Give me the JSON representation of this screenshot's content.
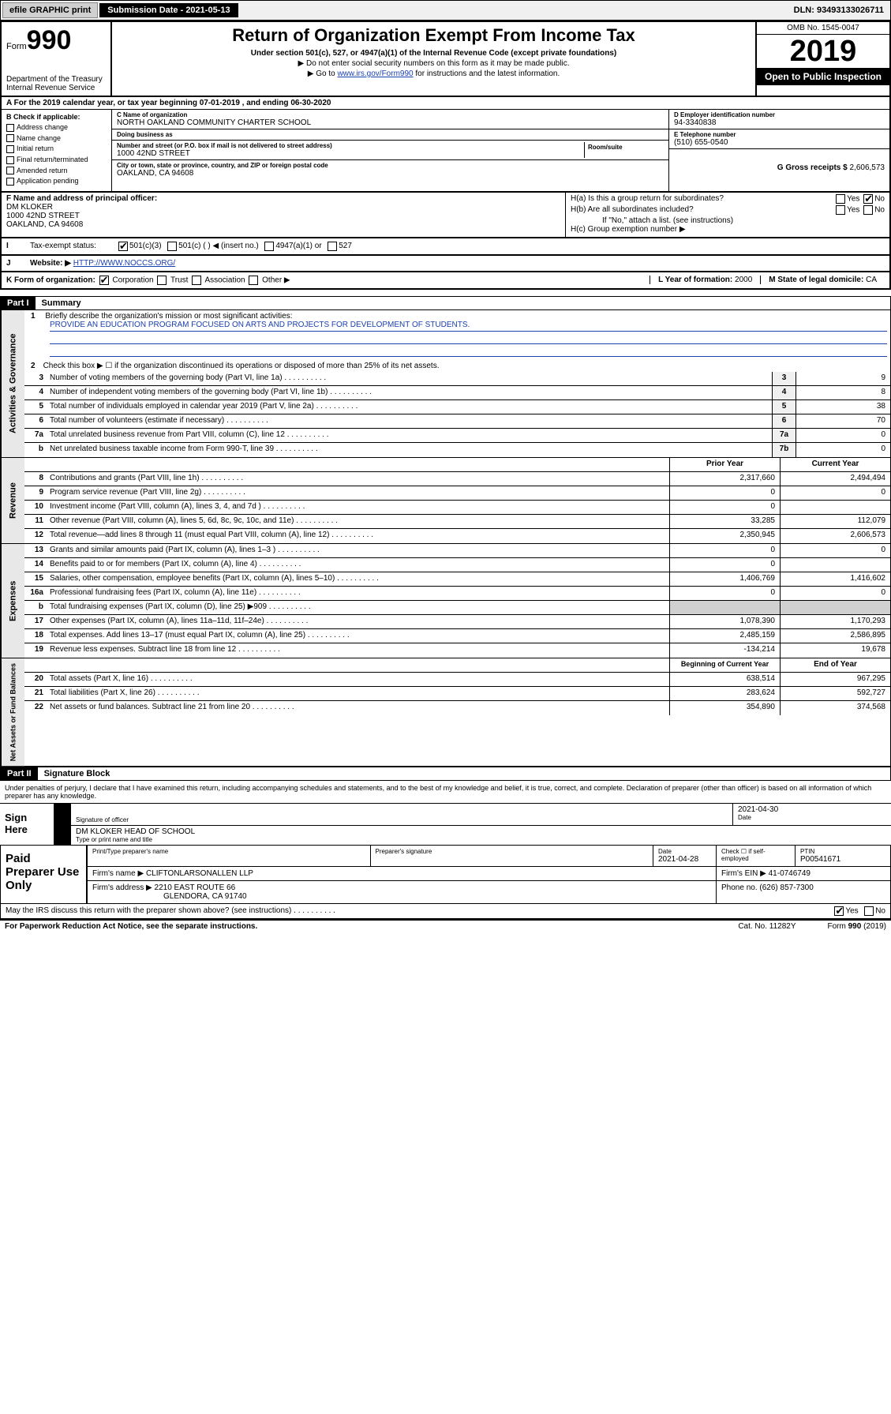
{
  "topbar": {
    "efile": "efile GRAPHIC print",
    "submission": "Submission Date - 2021-05-13",
    "dln": "DLN: 93493133026711"
  },
  "header": {
    "form_prefix": "Form",
    "form_no": "990",
    "title": "Return of Organization Exempt From Income Tax",
    "subtitle": "Under section 501(c), 527, or 4947(a)(1) of the Internal Revenue Code (except private foundations)",
    "instr1": "▶ Do not enter social security numbers on this form as it may be made public.",
    "instr2_pre": "▶ Go to ",
    "instr2_link": "www.irs.gov/Form990",
    "instr2_post": " for instructions and the latest information.",
    "dept": "Department of the Treasury\nInternal Revenue Service",
    "omb": "OMB No. 1545-0047",
    "year": "2019",
    "open": "Open to Public Inspection"
  },
  "periodA": {
    "text": "A For the 2019 calendar year, or tax year beginning 07-01-2019     , and ending 06-30-2020"
  },
  "boxB": {
    "title": "B Check if applicable:",
    "items": [
      "Address change",
      "Name change",
      "Initial return",
      "Final return/terminated",
      "Amended return",
      "Application pending"
    ]
  },
  "boxC": {
    "name_lbl": "C Name of organization",
    "name": "NORTH OAKLAND COMMUNITY CHARTER SCHOOL",
    "dba_lbl": "Doing business as",
    "dba": "",
    "addr_lbl": "Number and street (or P.O. box if mail is not delivered to street address)",
    "room_lbl": "Room/suite",
    "addr": "1000 42ND STREET",
    "city_lbl": "City or town, state or province, country, and ZIP or foreign postal code",
    "city": "OAKLAND, CA  94608"
  },
  "boxD": {
    "lbl": "D Employer identification number",
    "val": "94-3340838"
  },
  "boxE": {
    "lbl": "E Telephone number",
    "val": "(510) 655-0540"
  },
  "boxG": {
    "lbl": "G Gross receipts $",
    "val": "2,606,573"
  },
  "boxF": {
    "lbl": "F  Name and address of principal officer:",
    "name": "DM KLOKER",
    "addr1": "1000 42ND STREET",
    "addr2": "OAKLAND, CA  94608"
  },
  "boxH": {
    "a": "H(a)  Is this a group return for subordinates?",
    "b": "H(b)  Are all subordinates included?",
    "bnote": "If \"No,\" attach a list. (see instructions)",
    "c": "H(c)  Group exemption number ▶"
  },
  "rowI": {
    "lbl": "Tax-exempt status:",
    "opts": [
      "501(c)(3)",
      "501(c) (  ) ◀ (insert no.)",
      "4947(a)(1) or",
      "527"
    ]
  },
  "rowJ": {
    "lbl": "Website: ▶",
    "val": "HTTP://WWW.NOCCS.ORG/"
  },
  "rowK": {
    "lbl": "K Form of organization:",
    "opts": [
      "Corporation",
      "Trust",
      "Association",
      "Other ▶"
    ],
    "L_lbl": "L Year of formation:",
    "L_val": "2000",
    "M_lbl": "M State of legal domicile:",
    "M_val": "CA"
  },
  "partI": {
    "hdr": "Part I",
    "title": "Summary"
  },
  "gov": {
    "side": "Activities & Governance",
    "l1_lbl": "Briefly describe the organization's mission or most significant activities:",
    "l1_val": "PROVIDE AN EDUCATION PROGRAM FOCUSED ON ARTS AND PROJECTS FOR DEVELOPMENT OF STUDENTS.",
    "l2": "Check this box ▶ ☐  if the organization discontinued its operations or disposed of more than 25% of its net assets.",
    "rows": [
      {
        "n": "3",
        "d": "Number of voting members of the governing body (Part VI, line 1a)",
        "b": "3",
        "v": "9"
      },
      {
        "n": "4",
        "d": "Number of independent voting members of the governing body (Part VI, line 1b)",
        "b": "4",
        "v": "8"
      },
      {
        "n": "5",
        "d": "Total number of individuals employed in calendar year 2019 (Part V, line 2a)",
        "b": "5",
        "v": "38"
      },
      {
        "n": "6",
        "d": "Total number of volunteers (estimate if necessary)",
        "b": "6",
        "v": "70"
      },
      {
        "n": "7a",
        "d": "Total unrelated business revenue from Part VIII, column (C), line 12",
        "b": "7a",
        "v": "0"
      },
      {
        "n": "b",
        "d": "Net unrelated business taxable income from Form 990-T, line 39",
        "b": "7b",
        "v": "0"
      }
    ]
  },
  "rev": {
    "side": "Revenue",
    "hdr_prior": "Prior Year",
    "hdr_curr": "Current Year",
    "rows": [
      {
        "n": "8",
        "d": "Contributions and grants (Part VIII, line 1h)",
        "p": "2,317,660",
        "c": "2,494,494"
      },
      {
        "n": "9",
        "d": "Program service revenue (Part VIII, line 2g)",
        "p": "0",
        "c": "0"
      },
      {
        "n": "10",
        "d": "Investment income (Part VIII, column (A), lines 3, 4, and 7d )",
        "p": "0",
        "c": ""
      },
      {
        "n": "11",
        "d": "Other revenue (Part VIII, column (A), lines 5, 6d, 8c, 9c, 10c, and 11e)",
        "p": "33,285",
        "c": "112,079"
      },
      {
        "n": "12",
        "d": "Total revenue—add lines 8 through 11 (must equal Part VIII, column (A), line 12)",
        "p": "2,350,945",
        "c": "2,606,573"
      }
    ]
  },
  "exp": {
    "side": "Expenses",
    "rows": [
      {
        "n": "13",
        "d": "Grants and similar amounts paid (Part IX, column (A), lines 1–3 )",
        "p": "0",
        "c": "0"
      },
      {
        "n": "14",
        "d": "Benefits paid to or for members (Part IX, column (A), line 4)",
        "p": "0",
        "c": ""
      },
      {
        "n": "15",
        "d": "Salaries, other compensation, employee benefits (Part IX, column (A), lines 5–10)",
        "p": "1,406,769",
        "c": "1,416,602"
      },
      {
        "n": "16a",
        "d": "Professional fundraising fees (Part IX, column (A), line 11e)",
        "p": "0",
        "c": "0"
      },
      {
        "n": "b",
        "d": "Total fundraising expenses (Part IX, column (D), line 25) ▶909",
        "p": "",
        "c": "",
        "shade": true
      },
      {
        "n": "17",
        "d": "Other expenses (Part IX, column (A), lines 11a–11d, 11f–24e)",
        "p": "1,078,390",
        "c": "1,170,293"
      },
      {
        "n": "18",
        "d": "Total expenses. Add lines 13–17 (must equal Part IX, column (A), line 25)",
        "p": "2,485,159",
        "c": "2,586,895"
      },
      {
        "n": "19",
        "d": "Revenue less expenses. Subtract line 18 from line 12",
        "p": "-134,214",
        "c": "19,678"
      }
    ]
  },
  "net": {
    "side": "Net Assets or Fund Balances",
    "hdr_prior": "Beginning of Current Year",
    "hdr_curr": "End of Year",
    "rows": [
      {
        "n": "20",
        "d": "Total assets (Part X, line 16)",
        "p": "638,514",
        "c": "967,295"
      },
      {
        "n": "21",
        "d": "Total liabilities (Part X, line 26)",
        "p": "283,624",
        "c": "592,727"
      },
      {
        "n": "22",
        "d": "Net assets or fund balances. Subtract line 21 from line 20",
        "p": "354,890",
        "c": "374,568"
      }
    ]
  },
  "partII": {
    "hdr": "Part II",
    "title": "Signature Block"
  },
  "sig": {
    "perjury": "Under penalties of perjury, I declare that I have examined this return, including accompanying schedules and statements, and to the best of my knowledge and belief, it is true, correct, and complete. Declaration of preparer (other than officer) is based on all information of which preparer has any knowledge.",
    "sign_here": "Sign Here",
    "sig_officer": "Signature of officer",
    "date_val": "2021-04-30",
    "date_lbl": "Date",
    "name_title": "DM KLOKER  HEAD OF SCHOOL",
    "name_lbl": "Type or print name and title"
  },
  "paid": {
    "label": "Paid Preparer Use Only",
    "h1": "Print/Type preparer's name",
    "h2": "Preparer's signature",
    "h3": "Date",
    "h4": "Check ☐ if self-employed",
    "h5": "PTIN",
    "date": "2021-04-28",
    "ptin": "P00541671",
    "firm_name_lbl": "Firm's name    ▶",
    "firm_name": "CLIFTONLARSONALLEN LLP",
    "firm_ein_lbl": "Firm's EIN ▶",
    "firm_ein": "41-0746749",
    "firm_addr_lbl": "Firm's address ▶",
    "firm_addr1": "2210 EAST ROUTE 66",
    "firm_addr2": "GLENDORA, CA  91740",
    "phone_lbl": "Phone no.",
    "phone": "(626) 857-7300"
  },
  "discuss": "May the IRS discuss this return with the preparer shown above? (see instructions)",
  "footer": {
    "pra": "For Paperwork Reduction Act Notice, see the separate instructions.",
    "cat": "Cat. No. 11282Y",
    "form": "Form 990 (2019)"
  }
}
